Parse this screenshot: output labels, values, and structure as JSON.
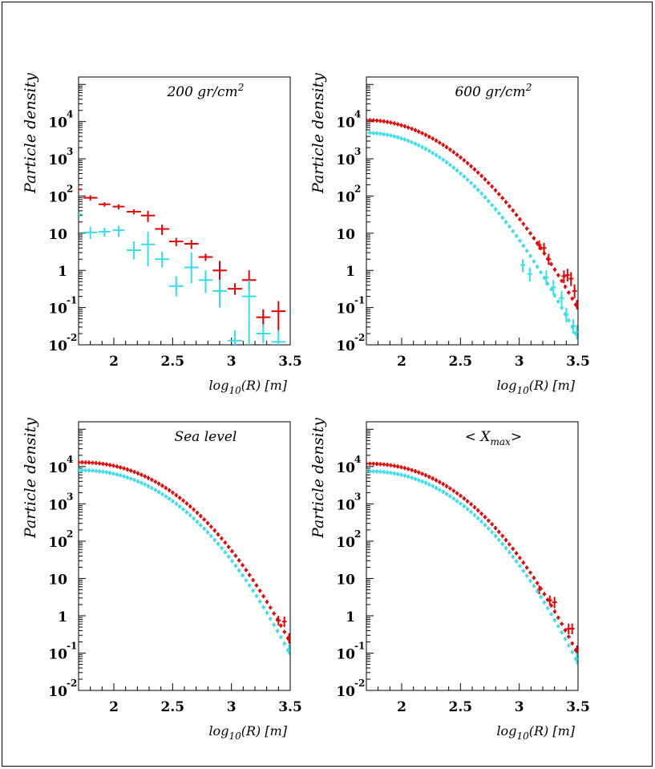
{
  "chart_data": [
    {
      "type": "scatter",
      "title": "200 gr/cm",
      "title_sup": "2",
      "xlabel": "log",
      "xlabel_sub": "10",
      "xlabel_rest": "(R) [m]",
      "ylabel": "Particle density",
      "xlim": [
        1.7,
        3.5
      ],
      "ylim_log10": [
        -2,
        5.2
      ],
      "y_scale": "log",
      "x_ticks": [
        "2",
        "2.5",
        "3",
        "3.5"
      ],
      "y_ticks": [
        {
          "base": "10",
          "exp": "4"
        },
        {
          "base": "10",
          "exp": "3"
        },
        {
          "base": "10",
          "exp": "2"
        },
        {
          "base": "10",
          "exp": ""
        },
        {
          "base": "1",
          "exp": ""
        },
        {
          "base": "10",
          "exp": "-1"
        },
        {
          "base": "10",
          "exp": "-2"
        }
      ],
      "series": [
        {
          "color": "#e60000",
          "points": [
            {
              "x": 1.7,
              "xerr": 0.03,
              "y": 150,
              "ylo": 140,
              "yhi": 160
            },
            {
              "x": 1.8,
              "xerr": 0.06,
              "y": 90,
              "ylo": 75,
              "yhi": 105
            },
            {
              "x": 1.92,
              "xerr": 0.05,
              "y": 60,
              "ylo": 52,
              "yhi": 68
            },
            {
              "x": 2.04,
              "xerr": 0.05,
              "y": 52,
              "ylo": 44,
              "yhi": 60
            },
            {
              "x": 2.17,
              "xerr": 0.06,
              "y": 38,
              "ylo": 32,
              "yhi": 44
            },
            {
              "x": 2.29,
              "xerr": 0.06,
              "y": 30,
              "ylo": 20,
              "yhi": 40
            },
            {
              "x": 2.41,
              "xerr": 0.06,
              "y": 13,
              "ylo": 9,
              "yhi": 17
            },
            {
              "x": 2.53,
              "xerr": 0.06,
              "y": 6,
              "ylo": 4.5,
              "yhi": 7.5
            },
            {
              "x": 2.66,
              "xerr": 0.06,
              "y": 5.2,
              "ylo": 3.8,
              "yhi": 6.6
            },
            {
              "x": 2.78,
              "xerr": 0.06,
              "y": 2.3,
              "ylo": 1.8,
              "yhi": 2.8
            },
            {
              "x": 2.9,
              "xerr": 0.06,
              "y": 1.0,
              "ylo": 0.55,
              "yhi": 1.8
            },
            {
              "x": 3.03,
              "xerr": 0.06,
              "y": 0.32,
              "ylo": 0.22,
              "yhi": 0.45
            },
            {
              "x": 3.15,
              "xerr": 0.06,
              "y": 0.55,
              "ylo": 0.3,
              "yhi": 1.0
            },
            {
              "x": 3.27,
              "xerr": 0.06,
              "y": 0.055,
              "ylo": 0.035,
              "yhi": 0.09
            },
            {
              "x": 3.4,
              "xerr": 0.06,
              "y": 0.08,
              "ylo": 0.022,
              "yhi": 0.15
            }
          ]
        },
        {
          "color": "#33ddee",
          "points": [
            {
              "x": 1.7,
              "xerr": 0.03,
              "y": 32,
              "ylo": 29,
              "yhi": 35
            },
            {
              "x": 1.8,
              "xerr": 0.06,
              "y": 10.5,
              "ylo": 7,
              "yhi": 15
            },
            {
              "x": 1.92,
              "xerr": 0.05,
              "y": 11,
              "ylo": 8,
              "yhi": 14
            },
            {
              "x": 2.04,
              "xerr": 0.05,
              "y": 12,
              "ylo": 8,
              "yhi": 16
            },
            {
              "x": 2.17,
              "xerr": 0.06,
              "y": 3.5,
              "ylo": 2,
              "yhi": 6
            },
            {
              "x": 2.29,
              "xerr": 0.06,
              "y": 5,
              "ylo": 1.3,
              "yhi": 11
            },
            {
              "x": 2.41,
              "xerr": 0.06,
              "y": 2,
              "ylo": 1.2,
              "yhi": 3.2
            },
            {
              "x": 2.53,
              "xerr": 0.06,
              "y": 0.38,
              "ylo": 0.2,
              "yhi": 0.7
            },
            {
              "x": 2.66,
              "xerr": 0.06,
              "y": 1.2,
              "ylo": 0.45,
              "yhi": 3
            },
            {
              "x": 2.78,
              "xerr": 0.06,
              "y": 0.55,
              "ylo": 0.25,
              "yhi": 1.0
            },
            {
              "x": 2.9,
              "xerr": 0.06,
              "y": 0.28,
              "ylo": 0.1,
              "yhi": 0.55
            },
            {
              "x": 3.03,
              "xerr": 0.06,
              "y": 0.013,
              "ylo": 0.01,
              "yhi": 0.025
            },
            {
              "x": 3.15,
              "xerr": 0.06,
              "y": 0.2,
              "ylo": 0.01,
              "yhi": 0.55
            },
            {
              "x": 3.27,
              "xerr": 0.06,
              "y": 0.02,
              "ylo": 0.011,
              "yhi": 0.035
            },
            {
              "x": 3.4,
              "xerr": 0.06,
              "y": 0.012,
              "ylo": 0.01,
              "yhi": 0.025
            }
          ]
        }
      ]
    },
    {
      "type": "scatter",
      "title": "600 gr/cm",
      "title_sup": "2",
      "xlabel": "log",
      "xlabel_sub": "10",
      "xlabel_rest": "(R) [m]",
      "ylabel": "Particle density",
      "xlim": [
        1.7,
        3.5
      ],
      "ylim_log10": [
        -2,
        5.2
      ],
      "y_scale": "log",
      "x_ticks": [
        "2",
        "2.5",
        "3",
        "3.5"
      ],
      "y_ticks": [
        {
          "base": "10",
          "exp": "4"
        },
        {
          "base": "10",
          "exp": "3"
        },
        {
          "base": "10",
          "exp": "2"
        },
        {
          "base": "10",
          "exp": ""
        },
        {
          "base": "1",
          "exp": ""
        },
        {
          "base": "10",
          "exp": "-1"
        },
        {
          "base": "10",
          "exp": "-2"
        }
      ],
      "series": [
        {
          "color": "#e60000",
          "profile": {
            "x_start": 1.7,
            "x_end": 3.48,
            "y_start": 11000,
            "y_end": 0.12,
            "shape": 2.0
          },
          "points": [
            {
              "x": 3.17,
              "xerr": 0.02,
              "y": 4.8,
              "ylo": 3.6,
              "yhi": 6.4
            },
            {
              "x": 3.21,
              "xerr": 0.02,
              "y": 4.0,
              "ylo": 2.8,
              "yhi": 5.5
            },
            {
              "x": 3.25,
              "xerr": 0.02,
              "y": 2.0,
              "ylo": 1.4,
              "yhi": 2.8
            },
            {
              "x": 3.38,
              "xerr": 0.02,
              "y": 0.7,
              "ylo": 0.45,
              "yhi": 1.0
            },
            {
              "x": 3.41,
              "xerr": 0.02,
              "y": 0.75,
              "ylo": 0.5,
              "yhi": 1.1
            },
            {
              "x": 3.44,
              "xerr": 0.02,
              "y": 0.6,
              "ylo": 0.38,
              "yhi": 0.9
            },
            {
              "x": 3.47,
              "xerr": 0.02,
              "y": 0.28,
              "ylo": 0.18,
              "yhi": 0.42
            },
            {
              "x": 3.49,
              "xerr": 0.02,
              "y": 0.12,
              "ylo": 0.09,
              "yhi": 0.16
            }
          ]
        },
        {
          "color": "#33ddee",
          "profile": {
            "x_start": 1.7,
            "x_end": 3.48,
            "y_start": 5000,
            "y_end": 0.02,
            "shape": 2.0
          },
          "points": [
            {
              "x": 3.03,
              "xerr": 0.02,
              "y": 1.4,
              "ylo": 0.9,
              "yhi": 2.0
            },
            {
              "x": 3.09,
              "xerr": 0.02,
              "y": 0.8,
              "ylo": 0.5,
              "yhi": 1.2
            },
            {
              "x": 3.23,
              "xerr": 0.02,
              "y": 0.65,
              "ylo": 0.4,
              "yhi": 1.0
            },
            {
              "x": 3.29,
              "xerr": 0.02,
              "y": 0.35,
              "ylo": 0.22,
              "yhi": 0.55
            },
            {
              "x": 3.36,
              "xerr": 0.02,
              "y": 0.18,
              "ylo": 0.11,
              "yhi": 0.28
            },
            {
              "x": 3.4,
              "xerr": 0.02,
              "y": 0.065,
              "ylo": 0.04,
              "yhi": 0.1
            },
            {
              "x": 3.46,
              "xerr": 0.02,
              "y": 0.032,
              "ylo": 0.02,
              "yhi": 0.05
            },
            {
              "x": 3.49,
              "xerr": 0.02,
              "y": 0.022,
              "ylo": 0.014,
              "yhi": 0.034
            }
          ]
        }
      ]
    },
    {
      "type": "scatter",
      "title": "Sea level",
      "title_sup": "",
      "xlabel": "log",
      "xlabel_sub": "10",
      "xlabel_rest": "(R) [m]",
      "ylabel": "Particle density",
      "xlim": [
        1.7,
        3.5
      ],
      "ylim_log10": [
        -2,
        5.2
      ],
      "y_scale": "log",
      "x_ticks": [
        "2",
        "2.5",
        "3",
        "3.5"
      ],
      "y_ticks": [
        {
          "base": "10",
          "exp": "4"
        },
        {
          "base": "10",
          "exp": "3"
        },
        {
          "base": "10",
          "exp": "2"
        },
        {
          "base": "10",
          "exp": ""
        },
        {
          "base": "1",
          "exp": ""
        },
        {
          "base": "10",
          "exp": "-1"
        },
        {
          "base": "10",
          "exp": "-2"
        }
      ],
      "series": [
        {
          "color": "#e60000",
          "profile": {
            "x_start": 1.7,
            "x_end": 3.48,
            "y_start": 13000,
            "y_end": 0.25,
            "shape": 2.2
          },
          "points": [
            {
              "x": 3.4,
              "xerr": 0.02,
              "y": 0.75,
              "ylo": 0.55,
              "yhi": 1.0
            },
            {
              "x": 3.45,
              "xerr": 0.02,
              "y": 0.7,
              "ylo": 0.5,
              "yhi": 0.95
            },
            {
              "x": 3.49,
              "xerr": 0.02,
              "y": 0.25,
              "ylo": 0.18,
              "yhi": 0.34
            }
          ]
        },
        {
          "color": "#33ddee",
          "profile": {
            "x_start": 1.7,
            "x_end": 3.48,
            "y_start": 8000,
            "y_end": 0.12,
            "shape": 2.2
          },
          "points": [
            {
              "x": 3.49,
              "xerr": 0.02,
              "y": 0.12,
              "ylo": 0.09,
              "yhi": 0.17
            }
          ]
        }
      ]
    },
    {
      "type": "scatter",
      "title": "< X",
      "title_sub": "max",
      "title_end": ">",
      "xlabel": "log",
      "xlabel_sub": "10",
      "xlabel_rest": "(R) [m]",
      "ylabel": "Particle density",
      "xlim": [
        1.7,
        3.5
      ],
      "ylim_log10": [
        -2,
        5.2
      ],
      "y_scale": "log",
      "x_ticks": [
        "2",
        "2.5",
        "3",
        "3.5"
      ],
      "y_ticks": [
        {
          "base": "10",
          "exp": "4"
        },
        {
          "base": "10",
          "exp": "3"
        },
        {
          "base": "10",
          "exp": "2"
        },
        {
          "base": "10",
          "exp": ""
        },
        {
          "base": "1",
          "exp": ""
        },
        {
          "base": "10",
          "exp": "-1"
        },
        {
          "base": "10",
          "exp": "-2"
        }
      ],
      "series": [
        {
          "color": "#e60000",
          "profile": {
            "x_start": 1.7,
            "x_end": 3.48,
            "y_start": 12000,
            "y_end": 0.12,
            "shape": 2.2
          },
          "points": [
            {
              "x": 3.17,
              "xerr": 0.02,
              "y": 5.0,
              "ylo": 3.8,
              "yhi": 6.5
            },
            {
              "x": 3.26,
              "xerr": 0.02,
              "y": 2.6,
              "ylo": 1.9,
              "yhi": 3.5
            },
            {
              "x": 3.3,
              "xerr": 0.02,
              "y": 2.3,
              "ylo": 1.6,
              "yhi": 3.2
            },
            {
              "x": 3.42,
              "xerr": 0.02,
              "y": 0.45,
              "ylo": 0.32,
              "yhi": 0.62
            },
            {
              "x": 3.45,
              "xerr": 0.02,
              "y": 0.45,
              "ylo": 0.32,
              "yhi": 0.62
            },
            {
              "x": 3.49,
              "xerr": 0.02,
              "y": 0.12,
              "ylo": 0.09,
              "yhi": 0.16
            }
          ]
        },
        {
          "color": "#33ddee",
          "profile": {
            "x_start": 1.7,
            "x_end": 3.48,
            "y_start": 7500,
            "y_end": 0.07,
            "shape": 2.2
          },
          "points": [
            {
              "x": 3.49,
              "xerr": 0.02,
              "y": 0.07,
              "ylo": 0.05,
              "yhi": 0.1
            }
          ]
        }
      ]
    }
  ]
}
